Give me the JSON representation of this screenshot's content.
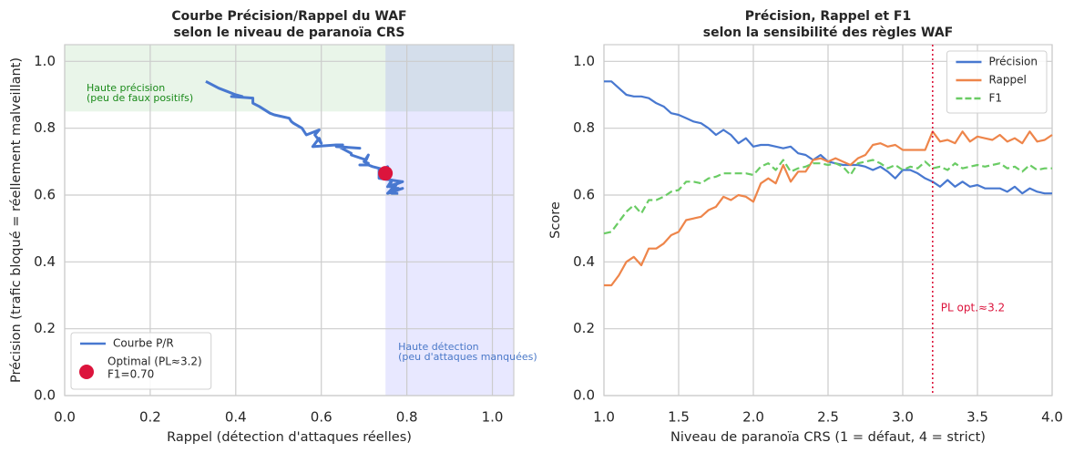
{
  "chart_data": [
    {
      "type": "line",
      "title": [
        "Courbe Précision/Rappel du WAF",
        "selon le niveau de paranoïa CRS"
      ],
      "xlabel": "Rappel (détection d'attaques réelles)",
      "ylabel": "Précision (trafic bloqué = réellement malveillant)",
      "xlim": [
        0,
        1.05
      ],
      "ylim": [
        0,
        1.05
      ],
      "xticks": [
        {
          "value": 0,
          "label": "0.0"
        },
        0.2,
        0.4,
        0.6,
        0.8,
        {
          "value": 1,
          "label": "1.0"
        }
      ],
      "yticks": [
        {
          "value": 0,
          "label": "0.0"
        },
        0.2,
        0.4,
        0.6,
        0.8,
        {
          "value": 1,
          "label": "1.0"
        }
      ],
      "grid": true,
      "legend": "lower left",
      "regions": [
        {
          "axis": "y",
          "from": 0.85,
          "to": 1.05,
          "color": "#2ca02c",
          "label": [
            "Haute précision",
            "(peu de faux positifs)"
          ],
          "label_color": "#1a8a1a"
        },
        {
          "axis": "x",
          "from": 0.75,
          "to": 1.05,
          "color": "#0000ff",
          "label": [
            "Haute détection",
            "(peu d'attaques manquées)"
          ],
          "label_color": "#4a78c8"
        }
      ],
      "series": [
        {
          "name": "Courbe P/R",
          "color": "#4878d0",
          "x": [
            0.33,
            0.33,
            0.36,
            0.4,
            0.415,
            0.39,
            0.44,
            0.44,
            0.455,
            0.48,
            0.49,
            0.525,
            0.53,
            0.535,
            0.555,
            0.565,
            0.595,
            0.585,
            0.6,
            0.595,
            0.58,
            0.635,
            0.65,
            0.635,
            0.69,
            0.64,
            0.67,
            0.67,
            0.705,
            0.71,
            0.7,
            0.71,
            0.7,
            0.69,
            0.71,
            0.72,
            0.75,
            0.755,
            0.745,
            0.75,
            0.735,
            0.735,
            0.735,
            0.735,
            0.79,
            0.76,
            0.765,
            0.755,
            0.79,
            0.76,
            0.775,
            0.77,
            0.765,
            0.78,
            0.76,
            0.77,
            0.755,
            0.79,
            0.76,
            0.765,
            0.78
          ],
          "values": [
            0.94,
            0.94,
            0.92,
            0.9,
            0.895,
            0.895,
            0.89,
            0.875,
            0.865,
            0.845,
            0.84,
            0.83,
            0.82,
            0.815,
            0.8,
            0.78,
            0.795,
            0.78,
            0.755,
            0.77,
            0.745,
            0.75,
            0.75,
            0.745,
            0.74,
            0.745,
            0.725,
            0.72,
            0.705,
            0.72,
            0.7,
            0.695,
            0.69,
            0.69,
            0.69,
            0.685,
            0.675,
            0.685,
            0.67,
            0.65,
            0.675,
            0.675,
            0.665,
            0.65,
            0.64,
            0.625,
            0.645,
            0.625,
            0.64,
            0.625,
            0.63,
            0.62,
            0.62,
            0.62,
            0.61,
            0.625,
            0.605,
            0.62,
            0.61,
            0.605,
            0.605
          ]
        }
      ],
      "points": [
        {
          "name": [
            "Optimal (PL≈3.2)",
            "F1=0.70"
          ],
          "x": 0.75,
          "y": 0.665,
          "color": "#dc143c"
        }
      ]
    },
    {
      "type": "line",
      "title": [
        "Précision, Rappel et F1",
        "selon la sensibilité des règles WAF"
      ],
      "xlabel": "Niveau de paranoïa CRS (1 = défaut, 4 = strict)",
      "ylabel": "Score",
      "xlim": [
        1,
        4
      ],
      "ylim": [
        0,
        1.05
      ],
      "xticks": [
        {
          "value": 1,
          "label": "1.0"
        },
        1.5,
        {
          "value": 2,
          "label": "2.0"
        },
        2.5,
        {
          "value": 3,
          "label": "3.0"
        },
        3.5,
        {
          "value": 4,
          "label": "4.0"
        }
      ],
      "yticks": [
        {
          "value": 0,
          "label": "0.0"
        },
        0.2,
        0.4,
        0.6,
        0.8,
        {
          "value": 1,
          "label": "1.0"
        }
      ],
      "grid": true,
      "legend": "upper right",
      "x": [
        1.0,
        1.05,
        1.1,
        1.15,
        1.2,
        1.25,
        1.3,
        1.35,
        1.4,
        1.45,
        1.5,
        1.55,
        1.6,
        1.65,
        1.7,
        1.75,
        1.8,
        1.85,
        1.9,
        1.95,
        2.0,
        2.05,
        2.1,
        2.15,
        2.2,
        2.25,
        2.3,
        2.35,
        2.4,
        2.45,
        2.5,
        2.55,
        2.6,
        2.65,
        2.7,
        2.75,
        2.8,
        2.85,
        2.9,
        2.95,
        3.0,
        3.05,
        3.1,
        3.15,
        3.2,
        3.25,
        3.3,
        3.35,
        3.4,
        3.45,
        3.5,
        3.55,
        3.6,
        3.65,
        3.7,
        3.75,
        3.8,
        3.85,
        3.9,
        3.95,
        4.0
      ],
      "series": [
        {
          "name": "Précision",
          "color": "#4878d0",
          "values": [
            0.94,
            0.94,
            0.92,
            0.9,
            0.895,
            0.895,
            0.89,
            0.875,
            0.865,
            0.845,
            0.84,
            0.83,
            0.82,
            0.815,
            0.8,
            0.78,
            0.795,
            0.78,
            0.755,
            0.77,
            0.745,
            0.75,
            0.75,
            0.745,
            0.74,
            0.745,
            0.725,
            0.72,
            0.705,
            0.72,
            0.7,
            0.695,
            0.69,
            0.69,
            0.69,
            0.685,
            0.675,
            0.685,
            0.67,
            0.65,
            0.675,
            0.675,
            0.665,
            0.65,
            0.64,
            0.625,
            0.645,
            0.625,
            0.64,
            0.625,
            0.63,
            0.62,
            0.62,
            0.62,
            0.61,
            0.625,
            0.605,
            0.62,
            0.61,
            0.605,
            0.605
          ]
        },
        {
          "name": "Rappel",
          "color": "#ee854a",
          "values": [
            0.33,
            0.33,
            0.36,
            0.4,
            0.415,
            0.39,
            0.44,
            0.44,
            0.455,
            0.48,
            0.49,
            0.525,
            0.53,
            0.535,
            0.555,
            0.565,
            0.595,
            0.585,
            0.6,
            0.595,
            0.58,
            0.635,
            0.65,
            0.635,
            0.69,
            0.64,
            0.67,
            0.67,
            0.705,
            0.71,
            0.7,
            0.71,
            0.7,
            0.69,
            0.71,
            0.72,
            0.75,
            0.755,
            0.745,
            0.75,
            0.735,
            0.735,
            0.735,
            0.735,
            0.79,
            0.76,
            0.765,
            0.755,
            0.79,
            0.76,
            0.775,
            0.77,
            0.765,
            0.78,
            0.76,
            0.77,
            0.755,
            0.79,
            0.76,
            0.765,
            0.78
          ]
        },
        {
          "name": "F1",
          "color": "#6acc64",
          "dashed": true,
          "values": [
            0.485,
            0.49,
            0.52,
            0.55,
            0.57,
            0.545,
            0.585,
            0.585,
            0.595,
            0.61,
            0.615,
            0.64,
            0.64,
            0.635,
            0.65,
            0.655,
            0.665,
            0.665,
            0.665,
            0.665,
            0.66,
            0.685,
            0.695,
            0.675,
            0.705,
            0.67,
            0.68,
            0.685,
            0.695,
            0.695,
            0.69,
            0.695,
            0.685,
            0.66,
            0.695,
            0.7,
            0.705,
            0.695,
            0.68,
            0.69,
            0.675,
            0.685,
            0.68,
            0.7,
            0.68,
            0.685,
            0.675,
            0.695,
            0.68,
            0.685,
            0.69,
            0.685,
            0.69,
            0.695,
            0.68,
            0.685,
            0.67,
            0.69,
            0.675,
            0.68,
            0.68
          ]
        }
      ],
      "vlines": [
        {
          "x": 3.2,
          "color": "#dc143c",
          "label": "PL opt.≈3.2"
        }
      ]
    }
  ]
}
